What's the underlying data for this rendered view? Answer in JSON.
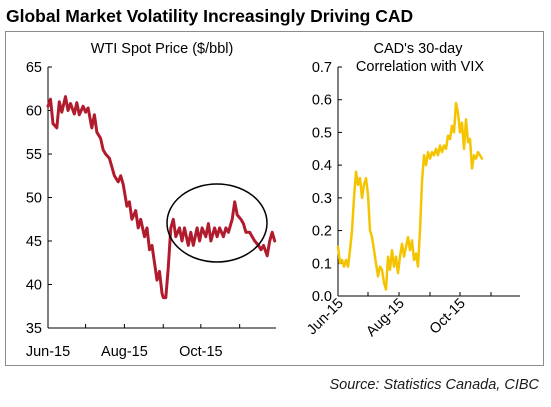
{
  "title": "Global Market Volatility Increasingly Driving CAD",
  "source": "Source: Statistics Canada, CIBC",
  "chart_data": [
    {
      "type": "line",
      "title": "WTI Spot Price ($/bbl)",
      "xlabel": "",
      "ylabel": "",
      "ylim": [
        35,
        65
      ],
      "yticks": [
        35,
        40,
        45,
        50,
        55,
        60,
        65
      ],
      "xlim": [
        "2015-06-01",
        "2015-11-30"
      ],
      "xticks": [
        {
          "label": "Jun-15",
          "date": "2015-06-01"
        },
        {
          "label": "Aug-15",
          "date": "2015-08-01"
        },
        {
          "label": "Oct-15",
          "date": "2015-10-01"
        }
      ],
      "grid": false,
      "annotation": "circle around Sep–Nov 2015 rebound",
      "series": [
        {
          "color": "#b01c2e",
          "points": [
            [
              "2015-06-01",
              60.5
            ],
            [
              "2015-06-03",
              61.3
            ],
            [
              "2015-06-05",
              58.5
            ],
            [
              "2015-06-08",
              58.0
            ],
            [
              "2015-06-10",
              61.0
            ],
            [
              "2015-06-12",
              59.8
            ],
            [
              "2015-06-15",
              61.6
            ],
            [
              "2015-06-17",
              60.0
            ],
            [
              "2015-06-19",
              60.8
            ],
            [
              "2015-06-22",
              59.6
            ],
            [
              "2015-06-24",
              60.9
            ],
            [
              "2015-06-26",
              59.5
            ],
            [
              "2015-06-29",
              60.5
            ],
            [
              "2015-07-01",
              59.8
            ],
            [
              "2015-07-03",
              60.3
            ],
            [
              "2015-07-06",
              58.0
            ],
            [
              "2015-07-08",
              59.5
            ],
            [
              "2015-07-10",
              57.5
            ],
            [
              "2015-07-13",
              56.8
            ],
            [
              "2015-07-15",
              55.5
            ],
            [
              "2015-07-17",
              55.0
            ],
            [
              "2015-07-20",
              54.5
            ],
            [
              "2015-07-22",
              53.5
            ],
            [
              "2015-07-24",
              52.5
            ],
            [
              "2015-07-27",
              51.8
            ],
            [
              "2015-07-29",
              52.5
            ],
            [
              "2015-07-31",
              51.5
            ],
            [
              "2015-08-03",
              49.0
            ],
            [
              "2015-08-05",
              49.5
            ],
            [
              "2015-08-07",
              47.5
            ],
            [
              "2015-08-10",
              48.5
            ],
            [
              "2015-08-12",
              46.5
            ],
            [
              "2015-08-14",
              47.5
            ],
            [
              "2015-08-17",
              45.5
            ],
            [
              "2015-08-19",
              46.5
            ],
            [
              "2015-08-21",
              44.0
            ],
            [
              "2015-08-23",
              44.5
            ],
            [
              "2015-08-25",
              42.5
            ],
            [
              "2015-08-27",
              40.5
            ],
            [
              "2015-08-29",
              41.5
            ],
            [
              "2015-08-31",
              39.0
            ],
            [
              "2015-09-01",
              38.5
            ],
            [
              "2015-09-03",
              38.5
            ],
            [
              "2015-09-05",
              42.0
            ],
            [
              "2015-09-07",
              46.5
            ],
            [
              "2015-09-09",
              47.5
            ],
            [
              "2015-09-11",
              45.5
            ],
            [
              "2015-09-14",
              46.5
            ],
            [
              "2015-09-16",
              45.0
            ],
            [
              "2015-09-18",
              46.5
            ],
            [
              "2015-09-21",
              44.5
            ],
            [
              "2015-09-23",
              46.0
            ],
            [
              "2015-09-25",
              44.5
            ],
            [
              "2015-09-28",
              46.5
            ],
            [
              "2015-09-30",
              45.0
            ],
            [
              "2015-10-02",
              46.5
            ],
            [
              "2015-10-05",
              45.5
            ],
            [
              "2015-10-07",
              47.0
            ],
            [
              "2015-10-09",
              45.0
            ],
            [
              "2015-10-12",
              46.5
            ],
            [
              "2015-10-14",
              45.5
            ],
            [
              "2015-10-16",
              46.5
            ],
            [
              "2015-10-19",
              45.5
            ],
            [
              "2015-10-21",
              46.5
            ],
            [
              "2015-10-23",
              46.0
            ],
            [
              "2015-10-26",
              47.5
            ],
            [
              "2015-10-28",
              49.5
            ],
            [
              "2015-10-30",
              48.0
            ],
            [
              "2015-11-02",
              47.5
            ],
            [
              "2015-11-04",
              47.0
            ],
            [
              "2015-11-06",
              46.0
            ],
            [
              "2015-11-09",
              46.0
            ],
            [
              "2015-11-11",
              45.5
            ],
            [
              "2015-11-13",
              45.0
            ],
            [
              "2015-11-16",
              44.5
            ],
            [
              "2015-11-18",
              44.0
            ],
            [
              "2015-11-20",
              44.5
            ],
            [
              "2015-11-23",
              43.3
            ],
            [
              "2015-11-25",
              45.0
            ],
            [
              "2015-11-27",
              46.0
            ],
            [
              "2015-11-29",
              45.0
            ]
          ]
        }
      ]
    },
    {
      "type": "line",
      "title": "CAD's 30-day Correlation with VIX",
      "xlabel": "",
      "ylabel": "",
      "ylim": [
        0,
        0.7
      ],
      "yticks": [
        0,
        0.1,
        0.2,
        0.3,
        0.4,
        0.5,
        0.6,
        0.7
      ],
      "xlim": [
        "2015-06-01",
        "2015-11-30"
      ],
      "xticks": [
        {
          "label": "Jun-15",
          "date": "2015-06-01"
        },
        {
          "label": "Aug-15",
          "date": "2015-08-01"
        },
        {
          "label": "Oct-15",
          "date": "2015-10-01"
        }
      ],
      "grid": false,
      "series": [
        {
          "color": "#f5c400",
          "points": [
            [
              "2015-06-01",
              0.15
            ],
            [
              "2015-06-03",
              0.1
            ],
            [
              "2015-06-05",
              0.11
            ],
            [
              "2015-06-07",
              0.09
            ],
            [
              "2015-06-09",
              0.11
            ],
            [
              "2015-06-11",
              0.09
            ],
            [
              "2015-06-13",
              0.14
            ],
            [
              "2015-06-15",
              0.2
            ],
            [
              "2015-06-17",
              0.3
            ],
            [
              "2015-06-19",
              0.38
            ],
            [
              "2015-06-21",
              0.34
            ],
            [
              "2015-06-23",
              0.36
            ],
            [
              "2015-06-25",
              0.3
            ],
            [
              "2015-06-27",
              0.34
            ],
            [
              "2015-06-29",
              0.36
            ],
            [
              "2015-07-01",
              0.31
            ],
            [
              "2015-07-03",
              0.2
            ],
            [
              "2015-07-05",
              0.18
            ],
            [
              "2015-07-07",
              0.14
            ],
            [
              "2015-07-09",
              0.1
            ],
            [
              "2015-07-11",
              0.06
            ],
            [
              "2015-07-13",
              0.09
            ],
            [
              "2015-07-15",
              0.08
            ],
            [
              "2015-07-17",
              0.04
            ],
            [
              "2015-07-19",
              0.02
            ],
            [
              "2015-07-21",
              0.12
            ],
            [
              "2015-07-23",
              0.08
            ],
            [
              "2015-07-25",
              0.14
            ],
            [
              "2015-07-27",
              0.09
            ],
            [
              "2015-07-29",
              0.12
            ],
            [
              "2015-07-31",
              0.07
            ],
            [
              "2015-08-02",
              0.12
            ],
            [
              "2015-08-04",
              0.16
            ],
            [
              "2015-08-06",
              0.12
            ],
            [
              "2015-08-08",
              0.15
            ],
            [
              "2015-08-10",
              0.18
            ],
            [
              "2015-08-12",
              0.14
            ],
            [
              "2015-08-14",
              0.17
            ],
            [
              "2015-08-16",
              0.11
            ],
            [
              "2015-08-18",
              0.13
            ],
            [
              "2015-08-20",
              0.09
            ],
            [
              "2015-08-22",
              0.2
            ],
            [
              "2015-08-24",
              0.35
            ],
            [
              "2015-08-26",
              0.43
            ],
            [
              "2015-08-28",
              0.4
            ],
            [
              "2015-08-30",
              0.44
            ],
            [
              "2015-09-01",
              0.42
            ],
            [
              "2015-09-03",
              0.44
            ],
            [
              "2015-09-05",
              0.43
            ],
            [
              "2015-09-07",
              0.45
            ],
            [
              "2015-09-09",
              0.43
            ],
            [
              "2015-09-11",
              0.46
            ],
            [
              "2015-09-13",
              0.44
            ],
            [
              "2015-09-15",
              0.46
            ],
            [
              "2015-09-17",
              0.45
            ],
            [
              "2015-09-19",
              0.49
            ],
            [
              "2015-09-21",
              0.48
            ],
            [
              "2015-09-23",
              0.52
            ],
            [
              "2015-09-25",
              0.5
            ],
            [
              "2015-09-27",
              0.59
            ],
            [
              "2015-09-29",
              0.56
            ],
            [
              "2015-10-01",
              0.5
            ],
            [
              "2015-10-03",
              0.53
            ],
            [
              "2015-10-05",
              0.45
            ],
            [
              "2015-10-07",
              0.54
            ],
            [
              "2015-10-09",
              0.47
            ],
            [
              "2015-10-11",
              0.48
            ],
            [
              "2015-10-13",
              0.39
            ],
            [
              "2015-10-15",
              0.43
            ],
            [
              "2015-10-17",
              0.42
            ],
            [
              "2015-10-19",
              0.44
            ],
            [
              "2015-10-21",
              0.43
            ],
            [
              "2015-10-23",
              0.42
            ]
          ]
        }
      ]
    }
  ]
}
